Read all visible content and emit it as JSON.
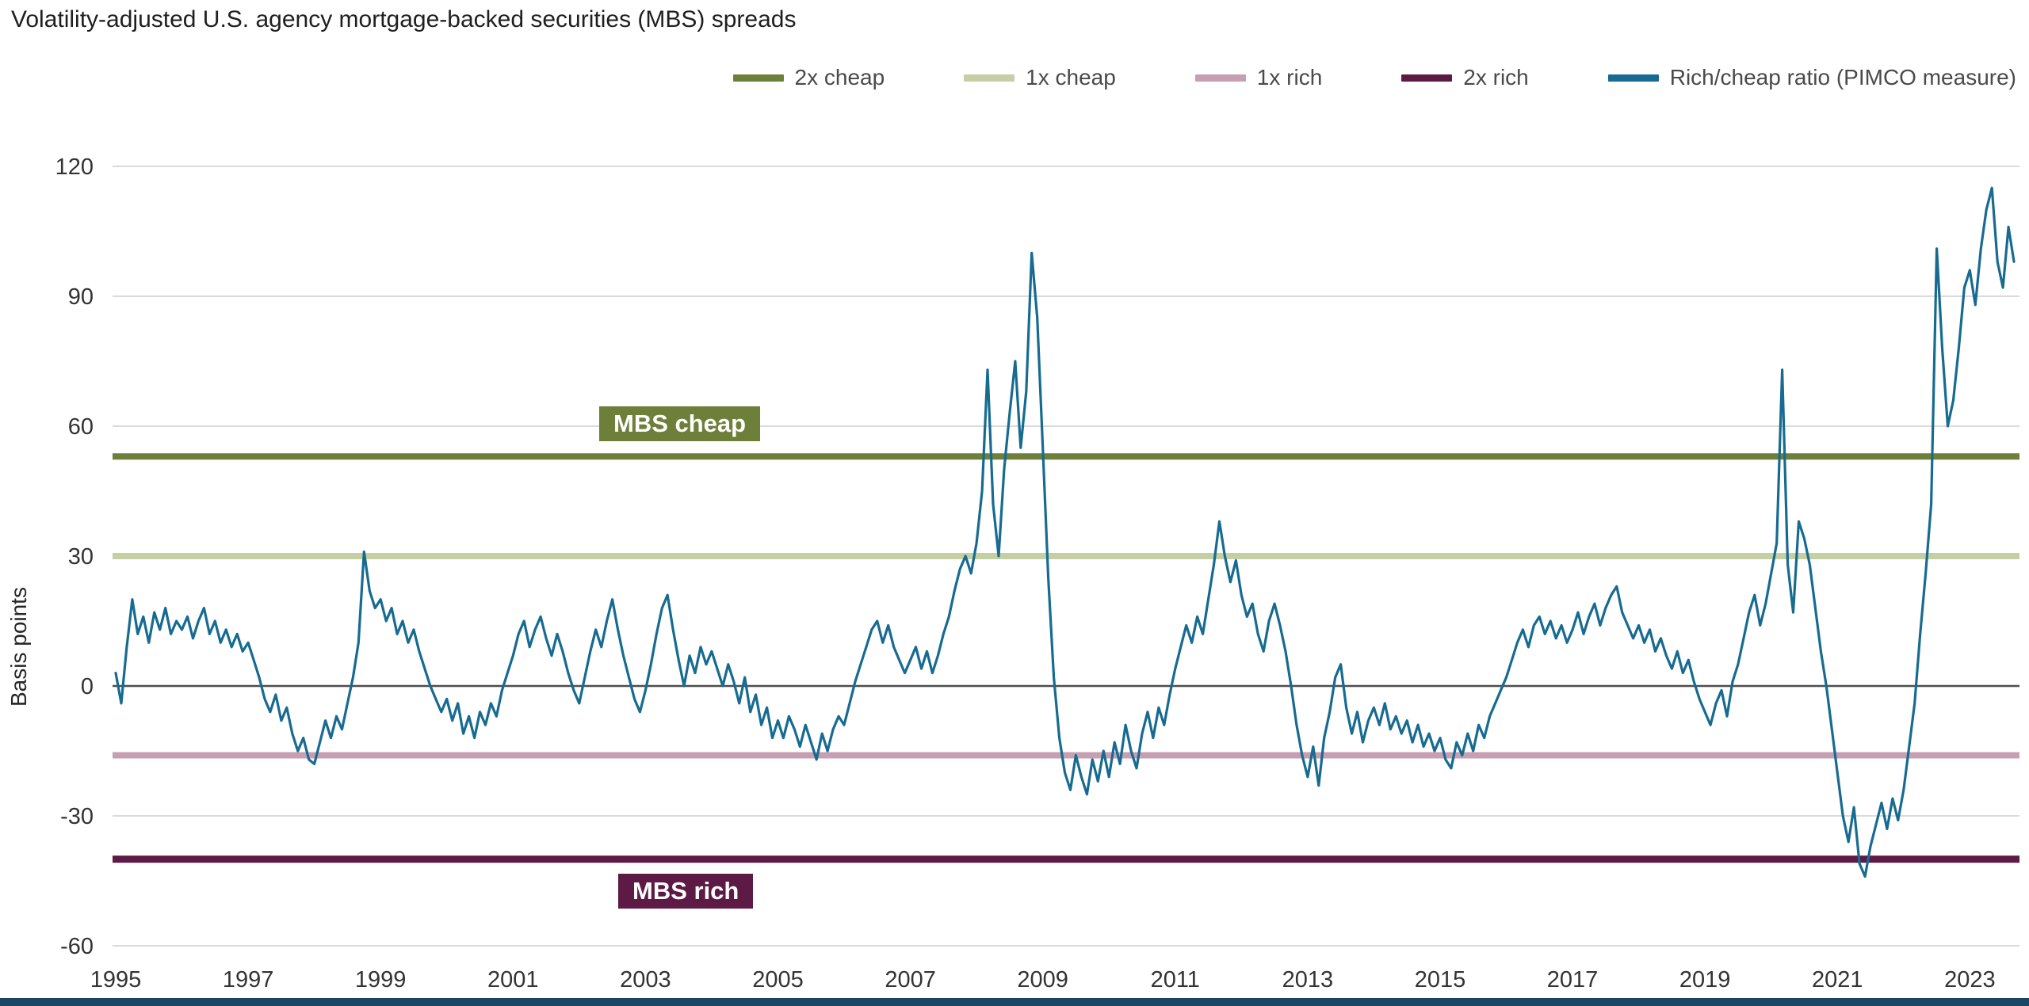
{
  "page": {
    "title": "Volatility-adjusted U.S. agency mortgage-backed securities (MBS) spreads",
    "footer_band_color": "#1b4766"
  },
  "legend": {
    "items": [
      {
        "label": "2x cheap",
        "color": "#6e7f3a"
      },
      {
        "label": "1x cheap",
        "color": "#c5cfa4"
      },
      {
        "label": "1x rich",
        "color": "#c79fb2"
      },
      {
        "label": "2x rich",
        "color": "#5c1a44"
      },
      {
        "label": "Rich/cheap ratio (PIMCO measure)",
        "color": "#176b91"
      }
    ]
  },
  "chart_data": {
    "type": "line",
    "title": "Volatility-adjusted U.S. agency mortgage-backed securities (MBS) spreads",
    "xlabel": "",
    "ylabel": "Basis points",
    "ylim": [
      -60,
      120
    ],
    "xlim": [
      1995,
      2023.75
    ],
    "y_ticks": [
      -60,
      -30,
      0,
      30,
      60,
      90,
      120
    ],
    "x_ticks": [
      1995,
      1997,
      1999,
      2001,
      2003,
      2005,
      2007,
      2009,
      2011,
      2013,
      2015,
      2017,
      2019,
      2021,
      2023
    ],
    "grid": "horizontal",
    "legend_position": "top",
    "zero_line_color": "#4d4d4d",
    "grid_color": "#cfcfcf",
    "axis_text_color": "#333333",
    "reference_lines": [
      {
        "label": "2x cheap",
        "value": 53,
        "color": "#6e7f3a",
        "width": 8
      },
      {
        "label": "1x cheap",
        "value": 30,
        "color": "#c5cfa4",
        "width": 8
      },
      {
        "label": "1x rich",
        "value": -16,
        "color": "#c79fb2",
        "width": 8
      },
      {
        "label": "2x rich",
        "value": -40,
        "color": "#5c1a44",
        "width": 9
      }
    ],
    "annotations": [
      {
        "text": "MBS cheap",
        "bg": "#6e7f3a"
      },
      {
        "text": "MBS rich",
        "bg": "#5c1a44"
      }
    ],
    "series": [
      {
        "name": "Rich/cheap ratio (PIMCO measure)",
        "color": "#176b91",
        "start_year": 1995,
        "points_per_year": 12,
        "values": [
          3,
          -4,
          9,
          20,
          12,
          16,
          10,
          17,
          13,
          18,
          12,
          15,
          13,
          16,
          11,
          15,
          18,
          12,
          15,
          10,
          13,
          9,
          12,
          8,
          10,
          6,
          2,
          -3,
          -6,
          -2,
          -8,
          -5,
          -11,
          -15,
          -12,
          -17,
          -18,
          -13,
          -8,
          -12,
          -7,
          -10,
          -4,
          2,
          10,
          31,
          22,
          18,
          20,
          15,
          18,
          12,
          15,
          10,
          13,
          8,
          4,
          0,
          -3,
          -6,
          -3,
          -8,
          -4,
          -11,
          -7,
          -12,
          -6,
          -9,
          -4,
          -7,
          -1,
          3,
          7,
          12,
          15,
          9,
          13,
          16,
          11,
          7,
          12,
          8,
          3,
          -1,
          -4,
          2,
          8,
          13,
          9,
          15,
          20,
          13,
          7,
          2,
          -3,
          -6,
          -1,
          5,
          12,
          18,
          21,
          13,
          6,
          0,
          7,
          3,
          9,
          5,
          8,
          4,
          0,
          5,
          1,
          -4,
          2,
          -6,
          -2,
          -9,
          -5,
          -12,
          -8,
          -12,
          -7,
          -10,
          -14,
          -9,
          -13,
          -17,
          -11,
          -15,
          -10,
          -7,
          -9,
          -4,
          1,
          5,
          9,
          13,
          15,
          10,
          14,
          9,
          6,
          3,
          6,
          9,
          4,
          8,
          3,
          7,
          12,
          16,
          22,
          27,
          30,
          26,
          33,
          45,
          73,
          42,
          30,
          50,
          63,
          75,
          55,
          68,
          100,
          85,
          55,
          25,
          2,
          -12,
          -20,
          -24,
          -16,
          -21,
          -25,
          -17,
          -22,
          -15,
          -21,
          -13,
          -18,
          -9,
          -15,
          -19,
          -11,
          -6,
          -12,
          -5,
          -9,
          -2,
          4,
          9,
          14,
          10,
          16,
          12,
          20,
          28,
          38,
          30,
          24,
          29,
          21,
          16,
          19,
          12,
          8,
          15,
          19,
          14,
          8,
          0,
          -9,
          -16,
          -21,
          -14,
          -23,
          -12,
          -6,
          2,
          5,
          -5,
          -11,
          -6,
          -13,
          -8,
          -5,
          -9,
          -4,
          -10,
          -7,
          -11,
          -8,
          -13,
          -9,
          -14,
          -11,
          -15,
          -12,
          -17,
          -19,
          -13,
          -16,
          -11,
          -15,
          -9,
          -12,
          -7,
          -4,
          -1,
          2,
          6,
          10,
          13,
          9,
          14,
          16,
          12,
          15,
          11,
          14,
          10,
          13,
          17,
          12,
          16,
          19,
          14,
          18,
          21,
          23,
          17,
          14,
          11,
          14,
          10,
          13,
          8,
          11,
          7,
          4,
          8,
          3,
          6,
          1,
          -3,
          -6,
          -9,
          -4,
          -1,
          -7,
          1,
          5,
          11,
          17,
          21,
          14,
          19,
          26,
          33,
          73,
          28,
          17,
          38,
          34,
          28,
          18,
          8,
          0,
          -10,
          -20,
          -30,
          -36,
          -28,
          -41,
          -44,
          -37,
          -32,
          -27,
          -33,
          -26,
          -31,
          -24,
          -14,
          -4,
          12,
          26,
          42,
          101,
          78,
          60,
          66,
          78,
          92,
          96,
          88,
          101,
          110,
          115,
          98,
          92,
          106,
          98
        ]
      }
    ]
  }
}
